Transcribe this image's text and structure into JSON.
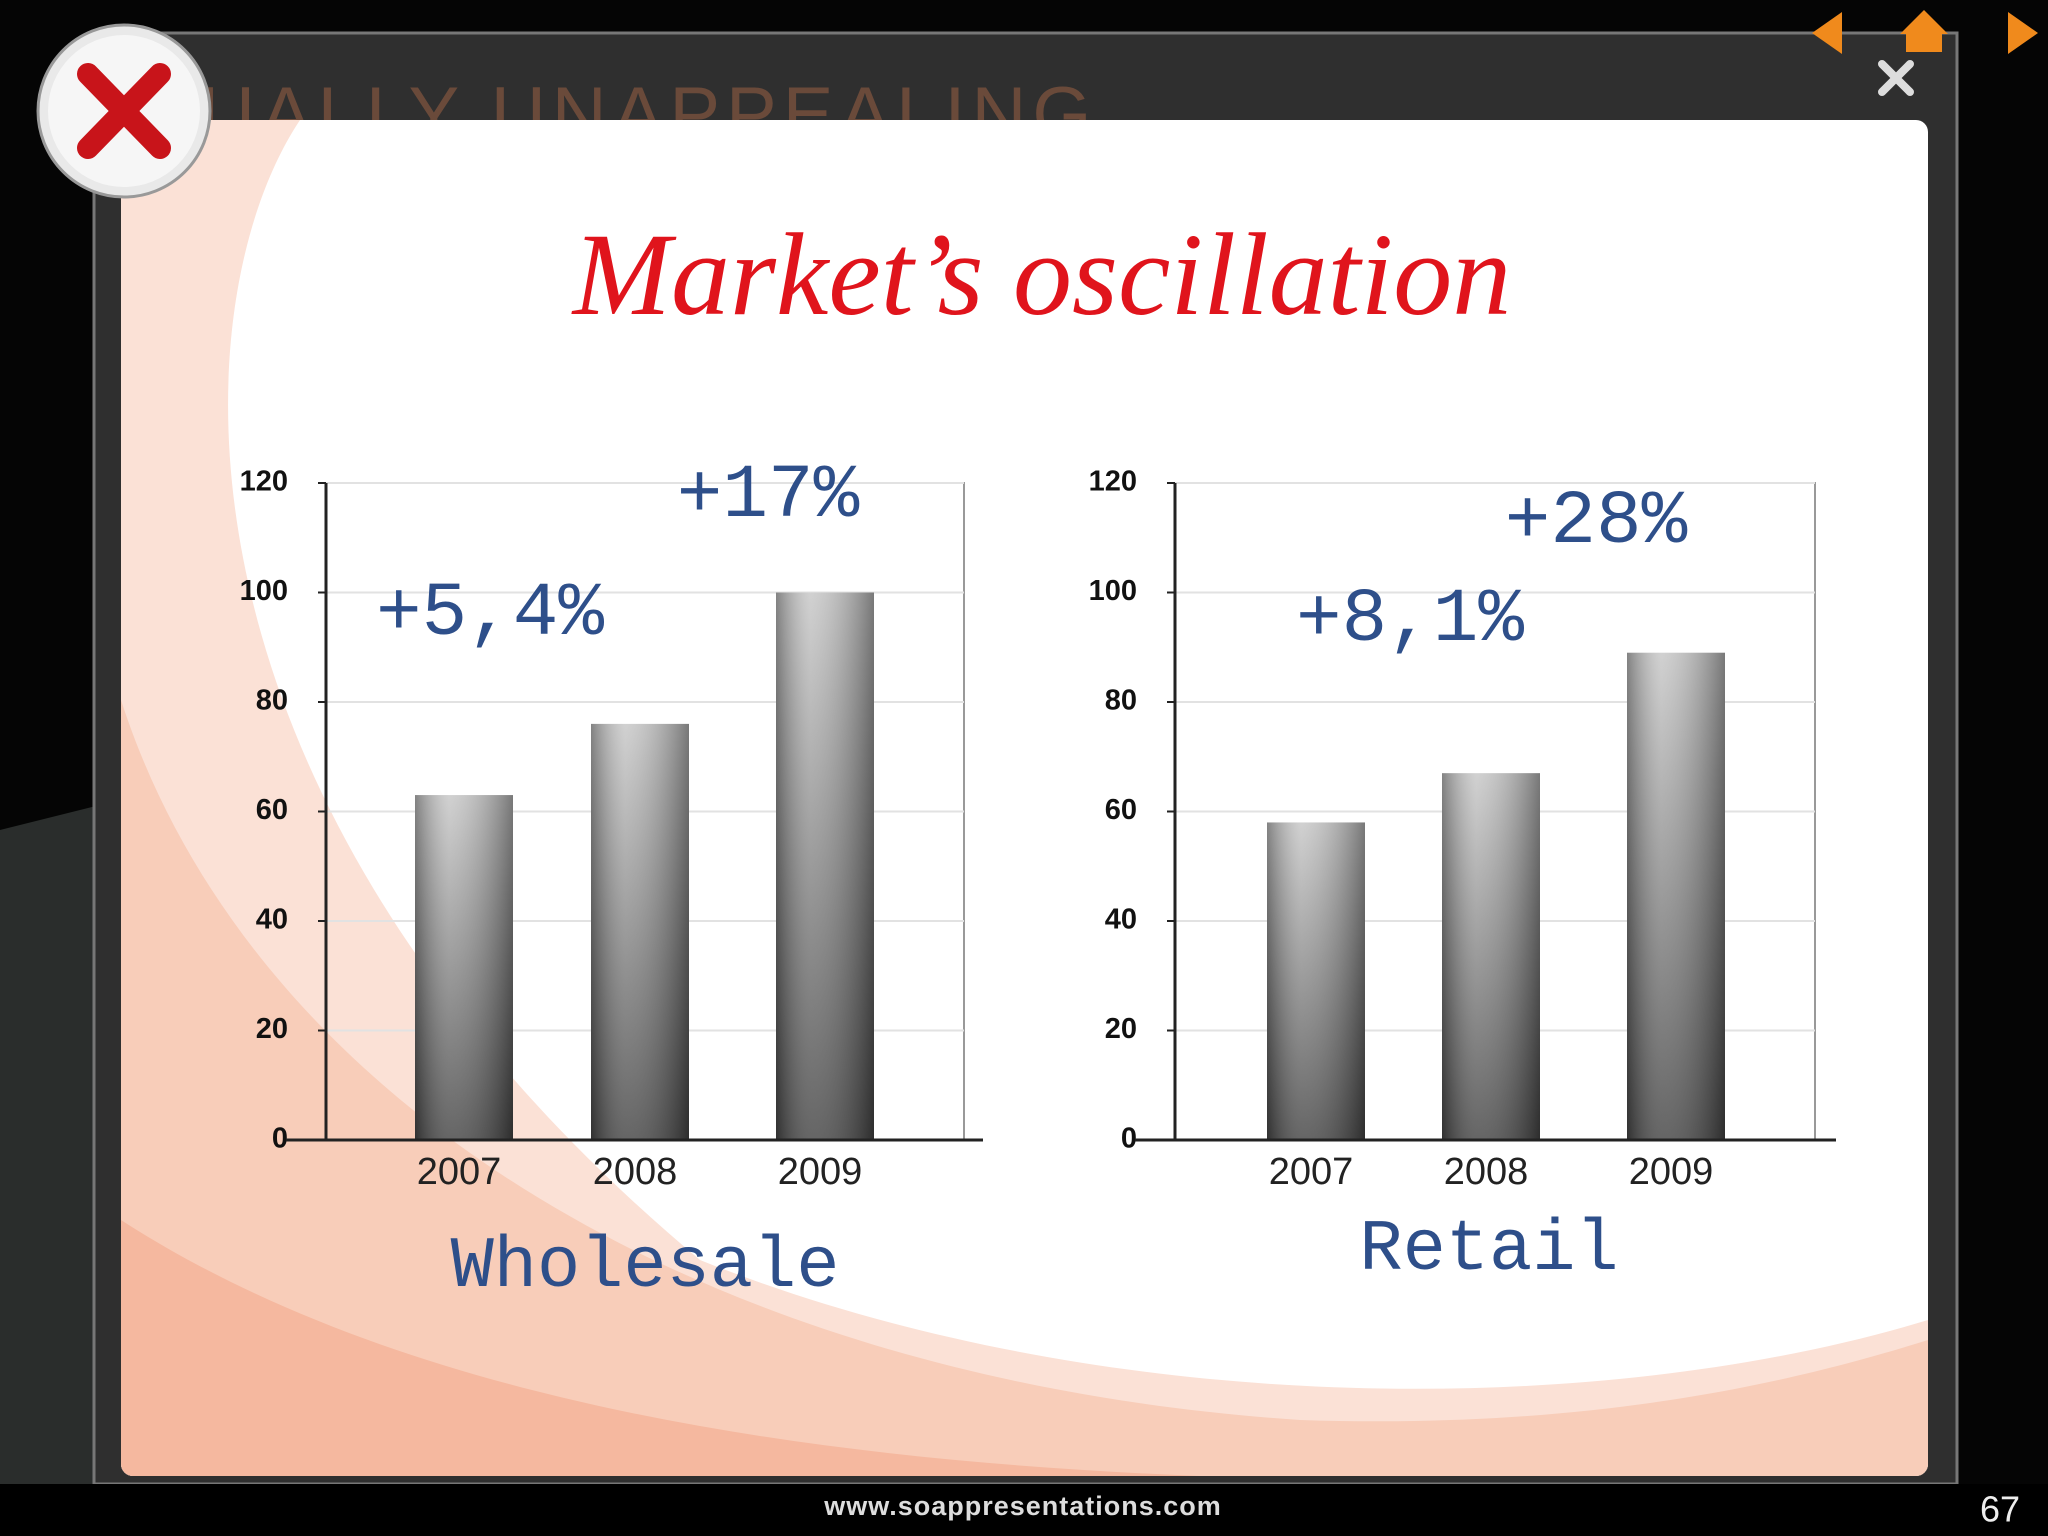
{
  "background_heading": "UALLY UNAPPEALING",
  "slide_title": "Market’s oscillation",
  "footer_url": "www.soappresentations.com",
  "page_number": "67",
  "chart_data": [
    {
      "type": "bar",
      "title": "Wholesale",
      "categories": [
        "2007",
        "2008",
        "2009"
      ],
      "values": [
        63,
        76,
        100
      ],
      "ylim": [
        0,
        120
      ],
      "yticks": [
        0,
        20,
        40,
        60,
        80,
        100,
        120
      ],
      "grid": true,
      "annotations": [
        "+5,4%",
        "+17%"
      ]
    },
    {
      "type": "bar",
      "title": "Retail",
      "categories": [
        "2007",
        "2008",
        "2009"
      ],
      "values": [
        58,
        67,
        89
      ],
      "ylim": [
        0,
        120
      ],
      "yticks": [
        0,
        20,
        40,
        60,
        80,
        100,
        120
      ],
      "grid": true,
      "annotations": [
        "+8,1%",
        "+28%"
      ]
    }
  ]
}
